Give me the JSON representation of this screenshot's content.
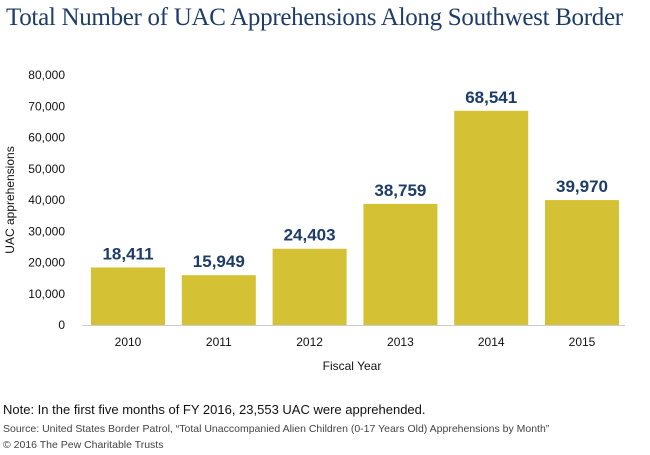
{
  "chart_data": {
    "type": "bar",
    "title": "Total Number of UAC Apprehensions Along Southwest Border",
    "xlabel": "Fiscal Year",
    "ylabel": "UAC apprehensions",
    "categories": [
      "2010",
      "2011",
      "2012",
      "2013",
      "2014",
      "2015"
    ],
    "values": [
      18411,
      15949,
      24403,
      38759,
      68541,
      39970
    ],
    "data_labels": [
      "18,411",
      "15,949",
      "24,403",
      "38,759",
      "68,541",
      "39,970"
    ],
    "ylim": [
      0,
      80000
    ],
    "yticks": [
      "0",
      "10,000",
      "20,000",
      "30,000",
      "40,000",
      "50,000",
      "60,000",
      "70,000",
      "80,000"
    ],
    "grid": false,
    "bar_color": "#d4c234",
    "label_color": "#1d3c68"
  },
  "footer": {
    "note": "Note: In the first five months of FY 2016, 23,553 UAC were apprehended.",
    "source": "Source: United States Border Patrol, “Total Unaccompanied Alien Children (0-17 Years Old) Apprehensions by Month”",
    "copyright": "© 2016 The Pew Charitable Trusts"
  }
}
